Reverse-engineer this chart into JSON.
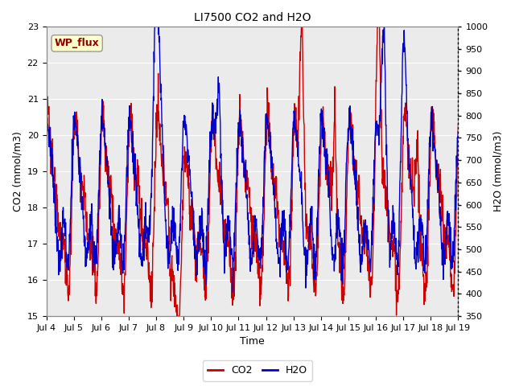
{
  "title": "LI7500 CO2 and H2O",
  "xlabel": "Time",
  "ylabel_left": "CO2 (mmol/m3)",
  "ylabel_right": "H2O (mmol/m3)",
  "annotation": "WP_flux",
  "annotation_color": "#8B0000",
  "annotation_bg": "#FFFFCC",
  "annotation_border": "#999999",
  "co2_color": "#CC0000",
  "h2o_color": "#0000CC",
  "ylim_left": [
    15.0,
    23.0
  ],
  "ylim_right": [
    350,
    1000
  ],
  "yticks_left": [
    15.0,
    16.0,
    17.0,
    18.0,
    19.0,
    20.0,
    21.0,
    22.0,
    23.0
  ],
  "yticks_right": [
    350,
    400,
    450,
    500,
    550,
    600,
    650,
    700,
    750,
    800,
    850,
    900,
    950,
    1000
  ],
  "xtick_labels": [
    "Jul 4",
    "Jul 5",
    "Jul 6",
    "Jul 7",
    "Jul 8",
    "Jul 9",
    "Jul 10",
    "Jul 11",
    "Jul 12",
    "Jul 13",
    "Jul 14",
    "Jul 15",
    "Jul 16",
    "Jul 17",
    "Jul 18",
    "Jul 19"
  ],
  "bg_color": "#EBEBEB",
  "legend_co2": "CO2",
  "legend_h2o": "H2O",
  "linewidth": 1.0,
  "tick_fontsize": 8,
  "label_fontsize": 9,
  "title_fontsize": 10
}
